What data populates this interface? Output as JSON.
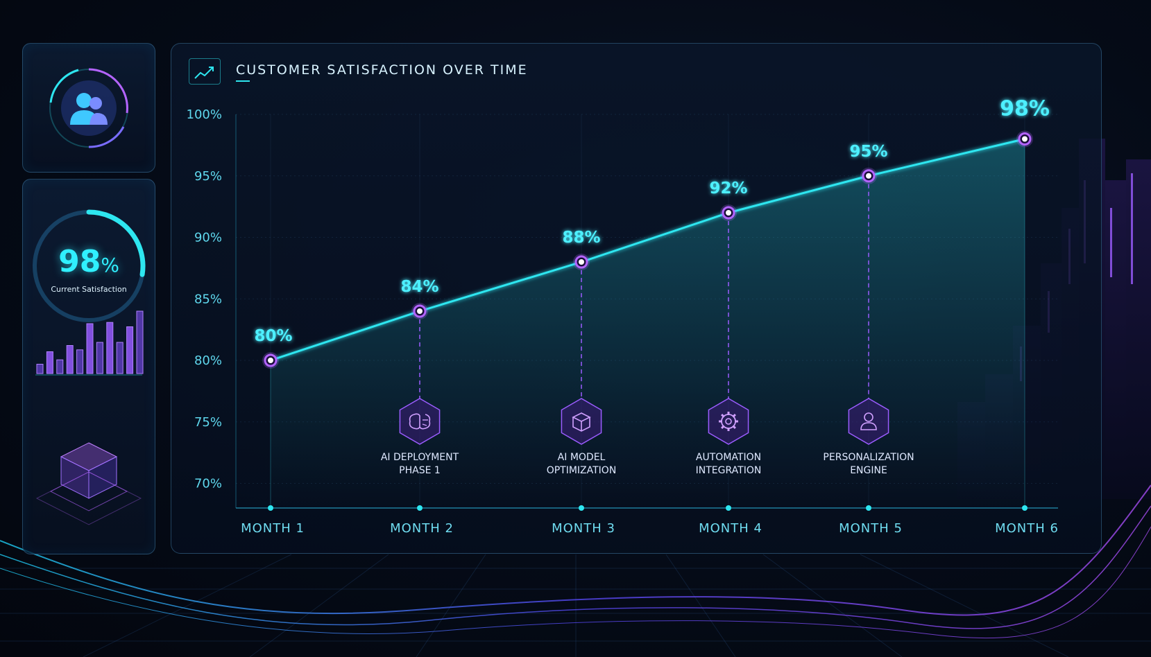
{
  "chart_data": {
    "type": "line",
    "title": "CUSTOMER SATISFACTION OVER TIME",
    "categories": [
      "MONTH 1",
      "MONTH 2",
      "MONTH 3",
      "MONTH 4",
      "MONTH 5",
      "MONTH 6"
    ],
    "values": [
      80,
      84,
      88,
      92,
      95,
      98
    ],
    "data_labels": [
      "80%",
      "84%",
      "88%",
      "92%",
      "95%",
      "98%"
    ],
    "y_ticks": [
      70,
      75,
      80,
      85,
      90,
      95,
      100
    ],
    "y_tick_labels": [
      "70%",
      "75%",
      "80%",
      "85%",
      "90%",
      "95%",
      "100%"
    ],
    "ylim": [
      68,
      100
    ],
    "grid": true,
    "line_color": "#2ee6f0",
    "marker_color": "#b464ff",
    "annotations": [
      {
        "month_index": 1,
        "icon": "brain-icon",
        "line1": "AI DEPLOYMENT",
        "line2": "PHASE 1"
      },
      {
        "month_index": 2,
        "icon": "cube-icon",
        "line1": "AI MODEL",
        "line2": "OPTIMIZATION"
      },
      {
        "month_index": 3,
        "icon": "gear-icon",
        "line1": "AUTOMATION",
        "line2": "INTEGRATION"
      },
      {
        "month_index": 4,
        "icon": "user-icon",
        "line1": "PERSONALIZATION",
        "line2": "ENGINE"
      }
    ]
  },
  "sidebar": {
    "profile_icon": "users-icon",
    "gauge": {
      "number": "98",
      "unit": "%",
      "label": "Current Satisfaction",
      "fraction": 0.98
    },
    "mini_bars": [
      0.15,
      0.35,
      0.22,
      0.45,
      0.38,
      0.8,
      0.5,
      0.82,
      0.5,
      0.75,
      1.0
    ],
    "cube_icon": "isometric-cubes-icon"
  },
  "colors": {
    "accent_cyan": "#2ee6f0",
    "accent_purple": "#b464ff",
    "background": "#050b17"
  }
}
